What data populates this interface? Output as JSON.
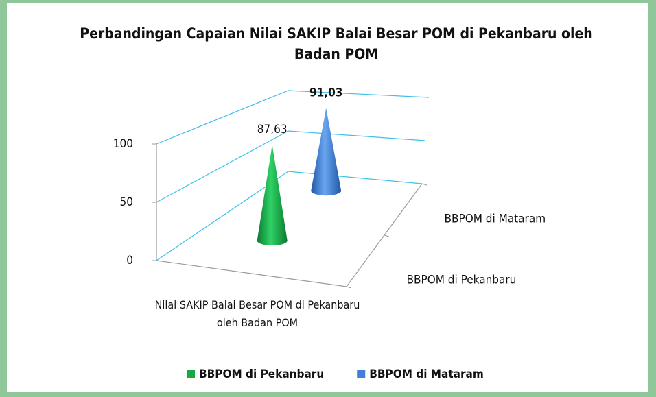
{
  "chart_data": {
    "type": "cone3d",
    "title": "Perbandingan Capaian Nilai SAKIP Balai Besar POM di Pekanbaru oleh Badan POM",
    "categories": [
      "Nilai SAKIP Balai Besar POM di Pekanbaru oleh Badan POM"
    ],
    "series": [
      {
        "name": "BBPOM di Pekanbaru",
        "color": "#17a846",
        "values": [
          87.63
        ],
        "value_labels": [
          "87,63"
        ]
      },
      {
        "name": "BBPOM di  Mataram",
        "color": "#3f7fd4",
        "values": [
          91.03
        ],
        "value_labels": [
          "91,03"
        ]
      }
    ],
    "ylim": [
      0,
      100
    ],
    "yticks": [
      0,
      50,
      100
    ],
    "grid": true,
    "legend": "bottom"
  }
}
